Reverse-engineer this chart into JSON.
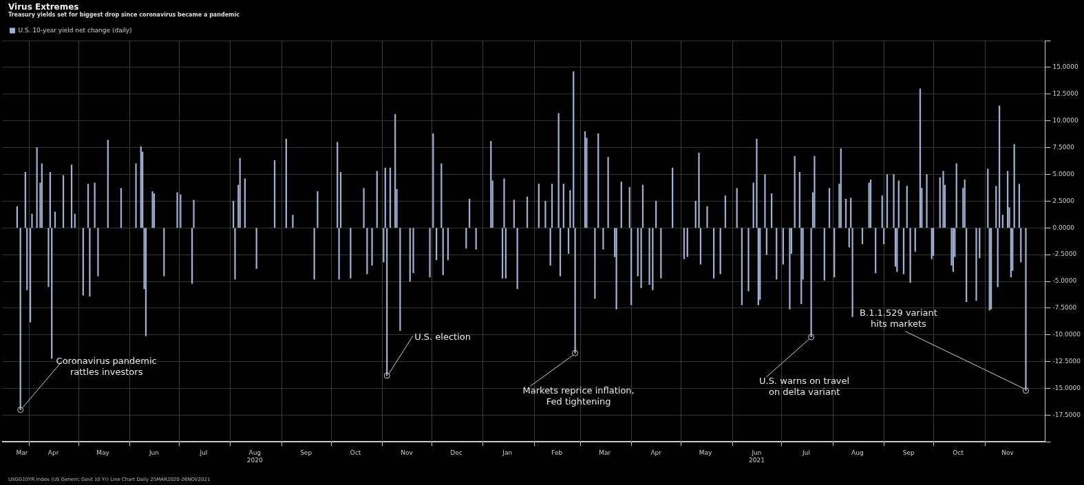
{
  "chart_data": {
    "type": "bar",
    "title": "Virus Extremes",
    "subtitle": "Treasury yields set for biggest drop since coronavirus became a pandemic",
    "legend": "top left",
    "grid": true,
    "x": [
      "2020-03-25",
      "2020-03-27",
      "2020-03-30",
      "2020-03-31",
      "2020-04-02",
      "2020-04-03",
      "2020-04-06",
      "2020-04-08",
      "2020-04-09",
      "2020-04-13",
      "2020-04-14",
      "2020-04-15",
      "2020-04-17",
      "2020-04-22",
      "2020-04-27",
      "2020-04-29",
      "2020-05-04",
      "2020-05-07",
      "2020-05-08",
      "2020-05-11",
      "2020-05-13",
      "2020-05-19",
      "2020-05-27",
      "2020-06-05",
      "2020-06-08",
      "2020-06-09",
      "2020-06-10",
      "2020-06-11",
      "2020-06-15",
      "2020-06-16",
      "2020-06-22",
      "2020-06-30",
      "2020-07-02",
      "2020-07-09",
      "2020-07-10",
      "2020-08-03",
      "2020-08-04",
      "2020-08-06",
      "2020-08-07",
      "2020-08-10",
      "2020-08-17",
      "2020-08-28",
      "2020-09-04",
      "2020-09-08",
      "2020-09-21",
      "2020-09-23",
      "2020-10-05",
      "2020-10-06",
      "2020-10-07",
      "2020-10-13",
      "2020-10-21",
      "2020-10-23",
      "2020-10-26",
      "2020-10-29",
      "2020-11-02",
      "2020-11-03",
      "2020-11-04",
      "2020-11-06",
      "2020-11-09",
      "2020-11-10",
      "2020-11-12",
      "2020-11-18",
      "2020-11-20",
      "2020-11-30",
      "2020-12-02",
      "2020-12-04",
      "2020-12-07",
      "2020-12-08",
      "2020-12-11",
      "2020-12-22",
      "2020-12-24",
      "2020-12-28",
      "2021-01-06",
      "2021-01-07",
      "2021-01-13",
      "2021-01-14",
      "2021-01-15",
      "2021-01-20",
      "2021-01-22",
      "2021-01-28",
      "2021-02-04",
      "2021-02-08",
      "2021-02-11",
      "2021-02-12",
      "2021-02-16",
      "2021-02-17",
      "2021-02-19",
      "2021-02-22",
      "2021-02-23",
      "2021-02-25",
      "2021-02-26",
      "2021-03-04",
      "2021-03-05",
      "2021-03-10",
      "2021-03-12",
      "2021-03-15",
      "2021-03-18",
      "2021-03-22",
      "2021-03-23",
      "2021-03-26",
      "2021-03-31",
      "2021-04-01",
      "2021-04-05",
      "2021-04-07",
      "2021-04-08",
      "2021-04-12",
      "2021-04-14",
      "2021-04-16",
      "2021-04-19",
      "2021-04-26",
      "2021-05-03",
      "2021-05-05",
      "2021-05-10",
      "2021-05-12",
      "2021-05-13",
      "2021-05-17",
      "2021-05-21",
      "2021-05-25",
      "2021-05-28",
      "2021-06-04",
      "2021-06-07",
      "2021-06-11",
      "2021-06-14",
      "2021-06-16",
      "2021-06-17",
      "2021-06-18",
      "2021-06-21",
      "2021-06-22",
      "2021-06-25",
      "2021-06-28",
      "2021-07-02",
      "2021-07-06",
      "2021-07-07",
      "2021-07-09",
      "2021-07-12",
      "2021-07-13",
      "2021-07-14",
      "2021-07-19",
      "2021-07-20",
      "2021-07-21",
      "2021-07-27",
      "2021-07-30",
      "2021-08-02",
      "2021-08-05",
      "2021-08-06",
      "2021-08-09",
      "2021-08-11",
      "2021-08-12",
      "2021-08-13",
      "2021-08-19",
      "2021-08-23",
      "2021-08-24",
      "2021-08-27",
      "2021-08-31",
      "2021-09-01",
      "2021-09-03",
      "2021-09-07",
      "2021-09-08",
      "2021-09-09",
      "2021-09-10",
      "2021-09-13",
      "2021-09-15",
      "2021-09-17",
      "2021-09-20",
      "2021-09-23",
      "2021-09-24",
      "2021-09-27",
      "2021-09-30",
      "2021-10-01",
      "2021-10-05",
      "2021-10-07",
      "2021-10-08",
      "2021-10-12",
      "2021-10-13",
      "2021-10-14",
      "2021-10-15",
      "2021-10-19",
      "2021-10-20",
      "2021-10-21",
      "2021-10-27",
      "2021-10-29",
      "2021-11-03",
      "2021-11-04",
      "2021-11-05",
      "2021-11-08",
      "2021-11-09",
      "2021-11-10",
      "2021-11-12",
      "2021-11-15",
      "2021-11-16",
      "2021-11-17",
      "2021-11-18",
      "2021-11-19",
      "2021-11-22",
      "2021-11-23",
      "2021-11-26"
    ],
    "series": [
      {
        "name": "U.S. 10-year yield net change (daily)",
        "color": "#9fb0d2",
        "values": [
          2.0,
          -17.0,
          5.2,
          -5.8,
          -8.8,
          1.3,
          7.5,
          4.2,
          6.0,
          -5.5,
          5.2,
          -12.2,
          1.5,
          4.9,
          5.9,
          1.3,
          -6.3,
          4.1,
          -6.4,
          4.2,
          -4.5,
          8.2,
          3.7,
          6.0,
          7.6,
          7.1,
          -5.7,
          -10.1,
          3.4,
          3.2,
          -4.5,
          3.3,
          3.1,
          -5.2,
          2.6,
          2.5,
          -4.8,
          4.0,
          6.5,
          4.6,
          -3.8,
          6.3,
          8.3,
          1.2,
          -4.8,
          3.4,
          8.0,
          -4.8,
          5.2,
          -4.7,
          3.7,
          -4.3,
          -3.5,
          5.3,
          -3.2,
          5.6,
          -13.8,
          5.6,
          10.6,
          3.6,
          -9.6,
          -5.0,
          -4.2,
          -4.6,
          8.8,
          -3.0,
          6.0,
          -4.4,
          -3.0,
          -1.9,
          2.7,
          -2.0,
          8.1,
          4.4,
          -4.7,
          4.6,
          -4.7,
          2.6,
          -5.7,
          2.9,
          4.1,
          2.5,
          -3.5,
          4.1,
          10.7,
          -4.5,
          4.1,
          -2.4,
          3.5,
          14.6,
          -11.7,
          9.0,
          8.4,
          -6.6,
          8.8,
          -2.0,
          6.6,
          -2.7,
          -7.6,
          4.3,
          3.8,
          -7.2,
          -4.5,
          -5.6,
          4.0,
          -5.3,
          -5.8,
          2.5,
          -4.7,
          5.6,
          -2.9,
          -2.7,
          2.5,
          7.0,
          -3.4,
          2.0,
          -4.7,
          -4.3,
          3.0,
          3.7,
          -7.2,
          -5.9,
          4.2,
          8.3,
          -7.2,
          -6.7,
          5.0,
          -2.5,
          3.2,
          -4.8,
          -3.4,
          -7.6,
          -2.4,
          6.7,
          5.2,
          -7.1,
          -4.8,
          -10.2,
          3.3,
          6.7,
          -4.9,
          3.7,
          -4.6,
          4.1,
          7.4,
          2.7,
          -1.8,
          2.8,
          -8.3,
          -1.5,
          4.2,
          4.5,
          -4.2,
          3.0,
          -1.5,
          5.0,
          5.0,
          -3.6,
          -4.1,
          4.4,
          -4.3,
          3.9,
          -5.1,
          -2.2,
          13.0,
          3.7,
          5.0,
          -2.9,
          -2.6,
          4.7,
          5.3,
          4.0,
          -3.5,
          -4.1,
          -2.7,
          6.0,
          3.7,
          4.5,
          -6.9,
          -6.8,
          -2.8,
          5.5,
          -7.7,
          -7.6,
          3.9,
          -5.5,
          11.4,
          1.2,
          5.3,
          1.9,
          -4.6,
          -4.0,
          7.8,
          4.1,
          -3.2,
          -15.2
        ]
      }
    ],
    "xlim": [
      "2020-03-24",
      "2021-11-30"
    ],
    "xticks": [
      {
        "value": "2020-03-28",
        "label": "Mar"
      },
      {
        "value": "2020-04-01",
        "label": null
      },
      {
        "value": "2020-04-16",
        "label": "Apr"
      },
      {
        "value": "2020-05-01",
        "label": null
      },
      {
        "value": "2020-05-16",
        "label": "May"
      },
      {
        "value": "2020-06-01",
        "label": null
      },
      {
        "value": "2020-06-16",
        "label": "Jun"
      },
      {
        "value": "2020-07-01",
        "label": null
      },
      {
        "value": "2020-07-16",
        "label": "Jul"
      },
      {
        "value": "2020-08-01",
        "label": null
      },
      {
        "value": "2020-08-16",
        "label": "Aug\n2020"
      },
      {
        "value": "2020-09-01",
        "label": null
      },
      {
        "value": "2020-09-16",
        "label": "Sep"
      },
      {
        "value": "2020-10-01",
        "label": null
      },
      {
        "value": "2020-10-16",
        "label": "Oct"
      },
      {
        "value": "2020-11-01",
        "label": null
      },
      {
        "value": "2020-11-16",
        "label": "Nov"
      },
      {
        "value": "2020-12-01",
        "label": null
      },
      {
        "value": "2020-12-16",
        "label": "Dec"
      },
      {
        "value": "2021-01-01",
        "label": null
      },
      {
        "value": "2021-01-16",
        "label": "Jan"
      },
      {
        "value": "2021-02-01",
        "label": null
      },
      {
        "value": "2021-02-15",
        "label": "Feb"
      },
      {
        "value": "2021-03-01",
        "label": null
      },
      {
        "value": "2021-03-16",
        "label": "Mar"
      },
      {
        "value": "2021-04-01",
        "label": null
      },
      {
        "value": "2021-04-16",
        "label": "Apr"
      },
      {
        "value": "2021-05-01",
        "label": null
      },
      {
        "value": "2021-05-16",
        "label": "May"
      },
      {
        "value": "2021-06-01",
        "label": null
      },
      {
        "value": "2021-06-16",
        "label": "Jun\n2021"
      },
      {
        "value": "2021-07-01",
        "label": null
      },
      {
        "value": "2021-07-16",
        "label": "Jul"
      },
      {
        "value": "2021-08-01",
        "label": null
      },
      {
        "value": "2021-08-16",
        "label": "Aug"
      },
      {
        "value": "2021-09-01",
        "label": null
      },
      {
        "value": "2021-09-16",
        "label": "Sep"
      },
      {
        "value": "2021-10-01",
        "label": null
      },
      {
        "value": "2021-10-16",
        "label": "Oct"
      },
      {
        "value": "2021-11-01",
        "label": null
      },
      {
        "value": "2021-11-15",
        "label": "Nov"
      }
    ],
    "ylim": [
      -20,
      17.5
    ],
    "yticks": [
      {
        "value": -20,
        "label": null
      },
      {
        "value": -17.5,
        "label": "-17.5000"
      },
      {
        "value": -15,
        "label": "-15.0000"
      },
      {
        "value": -12.5,
        "label": "-12.5000"
      },
      {
        "value": -10,
        "label": "-10.0000"
      },
      {
        "value": -7.5,
        "label": "-7.5000"
      },
      {
        "value": -5,
        "label": "-5.0000"
      },
      {
        "value": -2.5,
        "label": "-2.5000"
      },
      {
        "value": 0,
        "label": "0.0000"
      },
      {
        "value": 2.5,
        "label": "2.5000"
      },
      {
        "value": 5,
        "label": "5.0000"
      },
      {
        "value": 7.5,
        "label": "7.5000"
      },
      {
        "value": 10,
        "label": "10.0000"
      },
      {
        "value": 12.5,
        "label": "12.5000"
      },
      {
        "value": 15,
        "label": "15.0000"
      },
      {
        "value": 17.5,
        "label": null
      }
    ],
    "annotations": [
      {
        "text": "Coronavirus pandemic\nrattles investors",
        "x": "2020-03-27",
        "y": -17.0
      },
      {
        "text": "U.S. election",
        "x": "2020-11-04",
        "y": -13.8
      },
      {
        "text": "Markets reprice inflation,\nFed tightening",
        "x": "2021-02-26",
        "y": -11.7
      },
      {
        "text": "U.S. warns on travel\non delta variant",
        "x": "2021-07-19",
        "y": -10.2
      },
      {
        "text": "B.1.1.529 variant\nhits markets",
        "x": "2021-11-26",
        "y": -15.2
      },
      "USGG10YR Index (US Generic Govt 10 Yr) Line Chart  Daily 25MAR2020-26NOV2021"
    ]
  }
}
